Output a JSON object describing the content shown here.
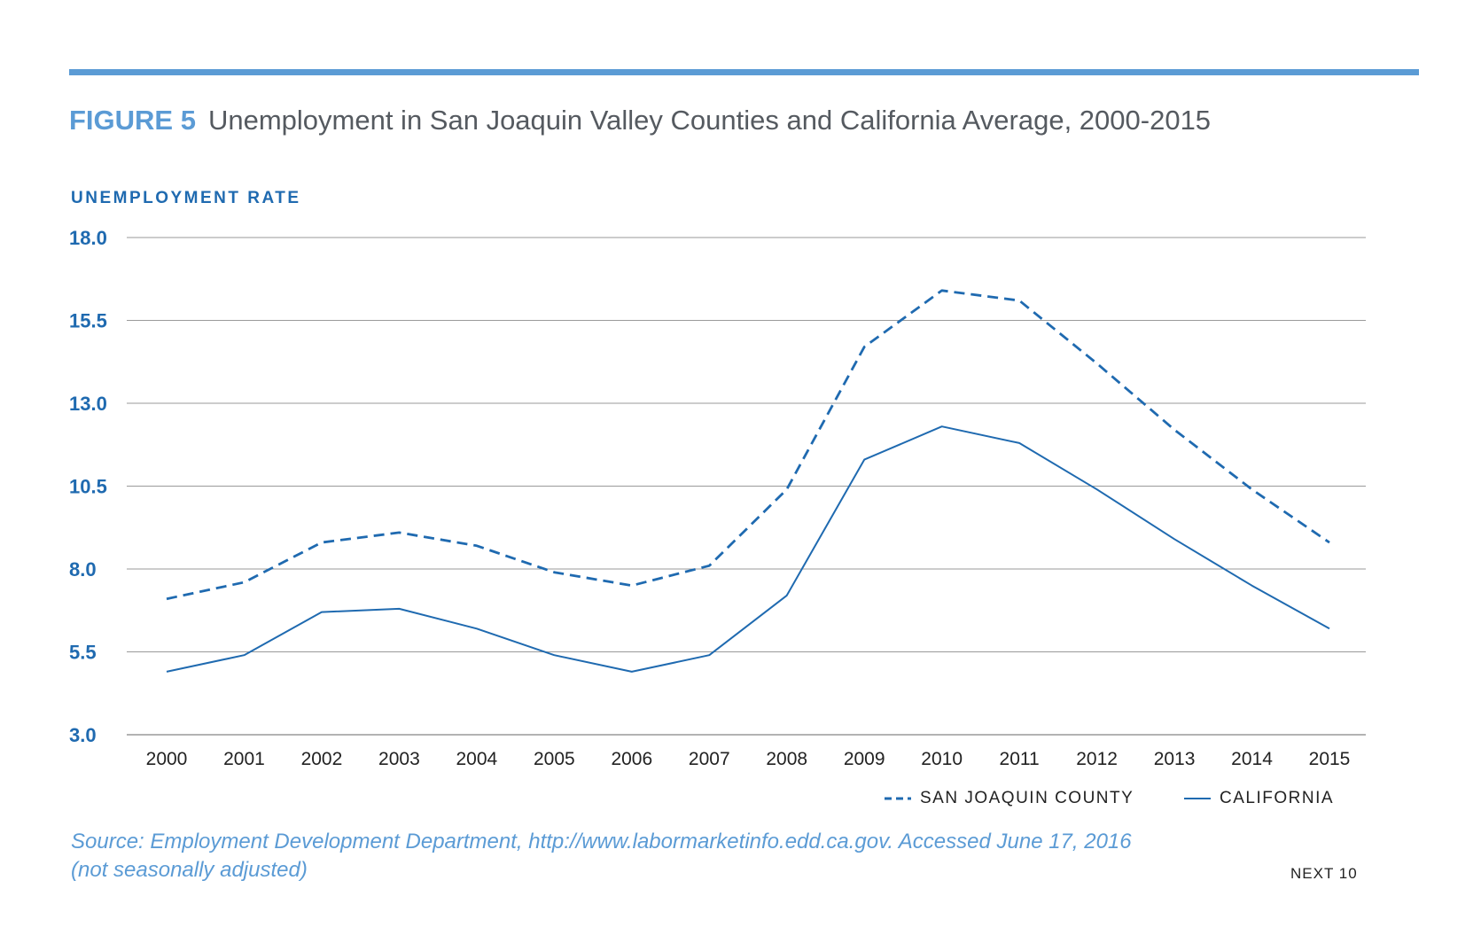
{
  "header": {
    "figure_label": "FIGURE 5",
    "title": "Unemployment in San Joaquin Valley Counties and California Average, 2000-2015"
  },
  "chart_data": {
    "type": "line",
    "ylabel": "UNEMPLOYMENT RATE",
    "xlabel": "",
    "categories": [
      "2000",
      "2001",
      "2002",
      "2003",
      "2004",
      "2005",
      "2006",
      "2007",
      "2008",
      "2009",
      "2010",
      "2011",
      "2012",
      "2013",
      "2014",
      "2015"
    ],
    "yticks": [
      "18.0",
      "15.5",
      "13.0",
      "10.5",
      "8.0",
      "5.5",
      "3.0"
    ],
    "ylim": [
      3.0,
      18.0
    ],
    "grid": true,
    "legend_position": "bottom-right",
    "series": [
      {
        "name": "SAN JOAQUIN COUNTY",
        "style": "dashed",
        "color": "#1f6ab0",
        "values": [
          7.1,
          7.6,
          8.8,
          9.1,
          8.7,
          7.9,
          7.5,
          8.1,
          10.4,
          14.7,
          16.4,
          16.1,
          14.2,
          12.2,
          10.4,
          8.8
        ]
      },
      {
        "name": "CALIFORNIA",
        "style": "solid",
        "color": "#1f6ab0",
        "values": [
          4.9,
          5.4,
          6.7,
          6.8,
          6.2,
          5.4,
          4.9,
          5.4,
          7.2,
          11.3,
          12.3,
          11.8,
          10.4,
          8.9,
          7.5,
          6.2
        ]
      }
    ]
  },
  "source": {
    "line1": "Source: Employment Development Department, http://www.labormarketinfo.edd.ca.gov. Accessed June 17, 2016",
    "line2": "(not seasonally adjusted)"
  },
  "footer": {
    "brand": "NEXT 10"
  },
  "colors": {
    "accent": "#5b9bd5",
    "series": "#1f6ab0",
    "grid": "#9a9a9a",
    "title_text": "#555a60"
  }
}
